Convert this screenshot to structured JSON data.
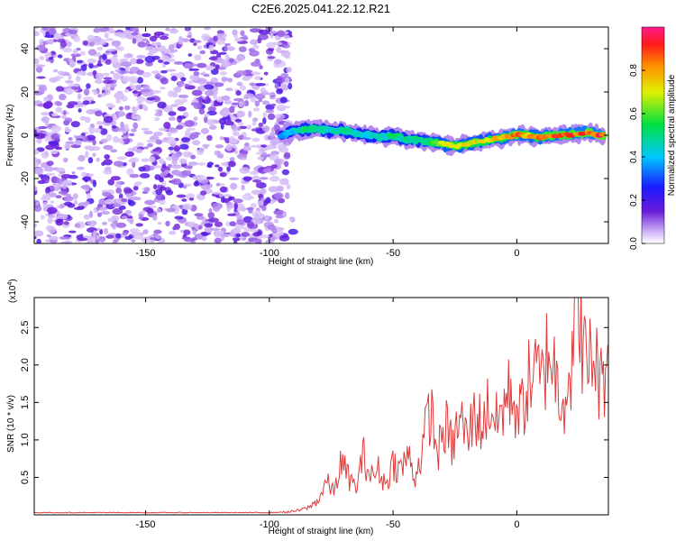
{
  "title": "C2E6.2025.041.22.12.R21",
  "spectrogram": {
    "xlabel": "Height of straight line (km)",
    "ylabel": "Frequency (Hz)",
    "x_ticks": [
      -150,
      -100,
      -50,
      0
    ],
    "y_ticks": [
      40,
      20,
      0,
      -20,
      -40
    ],
    "xlim": [
      -195,
      37
    ],
    "ylim": [
      -50,
      50
    ]
  },
  "colorbar": {
    "label": "Normalized spectral amplitude",
    "ticks": [
      "0.0",
      "0.2",
      "0.4",
      "0.6",
      "0.8"
    ]
  },
  "snr_plot": {
    "xlabel": "Height of straight line (km)",
    "ylabel": "SNR (10 * v/v)",
    "multiplier": "(x10",
    "multiplier_exp": "4",
    "multiplier_close": ")",
    "x_ticks": [
      -150,
      -100,
      -50,
      0
    ],
    "y_ticks": [
      "0.5",
      "1.0",
      "1.5",
      "2.0",
      "2.5"
    ],
    "xlim": [
      -195,
      37
    ],
    "ylim": [
      0,
      2.9
    ],
    "line_color": "#e03a3a"
  },
  "chart_data": [
    {
      "type": "heatmap",
      "title": "C2E6.2025.041.22.12.R21",
      "xlabel": "Height of straight line (km)",
      "ylabel": "Frequency (Hz)",
      "xlim": [
        -195,
        37
      ],
      "ylim": [
        -50,
        50
      ],
      "colorbar_label": "Normalized spectral amplitude",
      "colorbar_range": [
        0,
        1
      ],
      "ridge": {
        "x": [
          -95,
          -90,
          -85,
          -80,
          -75,
          -70,
          -65,
          -60,
          -55,
          -50,
          -45,
          -40,
          -35,
          -30,
          -25,
          -20,
          -15,
          -10,
          -5,
          0,
          5,
          10,
          15,
          20,
          25,
          30,
          35
        ],
        "frequency": [
          0,
          2,
          3,
          3,
          2,
          2,
          1,
          0,
          -1,
          0,
          -2,
          -2,
          -3,
          -4,
          -5,
          -4,
          -3,
          -2,
          -1,
          0,
          0,
          -1,
          0,
          0,
          1,
          1,
          0
        ],
        "amplitude": [
          0.35,
          0.45,
          0.55,
          0.5,
          0.45,
          0.5,
          0.45,
          0.45,
          0.45,
          0.55,
          0.5,
          0.5,
          0.6,
          0.75,
          0.8,
          0.75,
          0.7,
          0.75,
          0.85,
          0.9,
          0.8,
          0.85,
          0.9,
          0.9,
          0.9,
          0.95,
          0.95
        ]
      }
    },
    {
      "type": "line",
      "xlabel": "Height of straight line (km)",
      "ylabel": "SNR (10 * v/v)",
      "xlim": [
        -195,
        37
      ],
      "ylim": [
        0,
        2.9
      ],
      "y_multiplier": 10000,
      "series": [
        {
          "x": [
            -195,
            -150,
            -100,
            -92,
            -88,
            -84,
            -80,
            -77,
            -74,
            -71,
            -68,
            -65,
            -62,
            -59,
            -56,
            -53,
            -50,
            -47,
            -44,
            -41,
            -38,
            -35,
            -32,
            -29,
            -26,
            -23,
            -20,
            -17,
            -14,
            -11,
            -8,
            -5,
            -2,
            1,
            4,
            7,
            10,
            13,
            16,
            19,
            22,
            25,
            28,
            31,
            34,
            37
          ],
          "y": [
            0.03,
            0.03,
            0.03,
            0.04,
            0.06,
            0.1,
            0.2,
            0.45,
            0.3,
            0.7,
            0.5,
            0.35,
            0.8,
            0.5,
            0.6,
            0.4,
            0.7,
            0.6,
            0.8,
            0.5,
            0.9,
            1.45,
            0.8,
            1.2,
            0.9,
            1.3,
            1.0,
            1.35,
            1.2,
            1.5,
            1.2,
            1.5,
            1.65,
            1.3,
            1.7,
            1.9,
            1.75,
            2.3,
            1.8,
            1.6,
            2.0,
            2.9,
            1.9,
            2.2,
            1.7,
            2.25
          ],
          "color": "#e03a3a"
        }
      ]
    }
  ]
}
